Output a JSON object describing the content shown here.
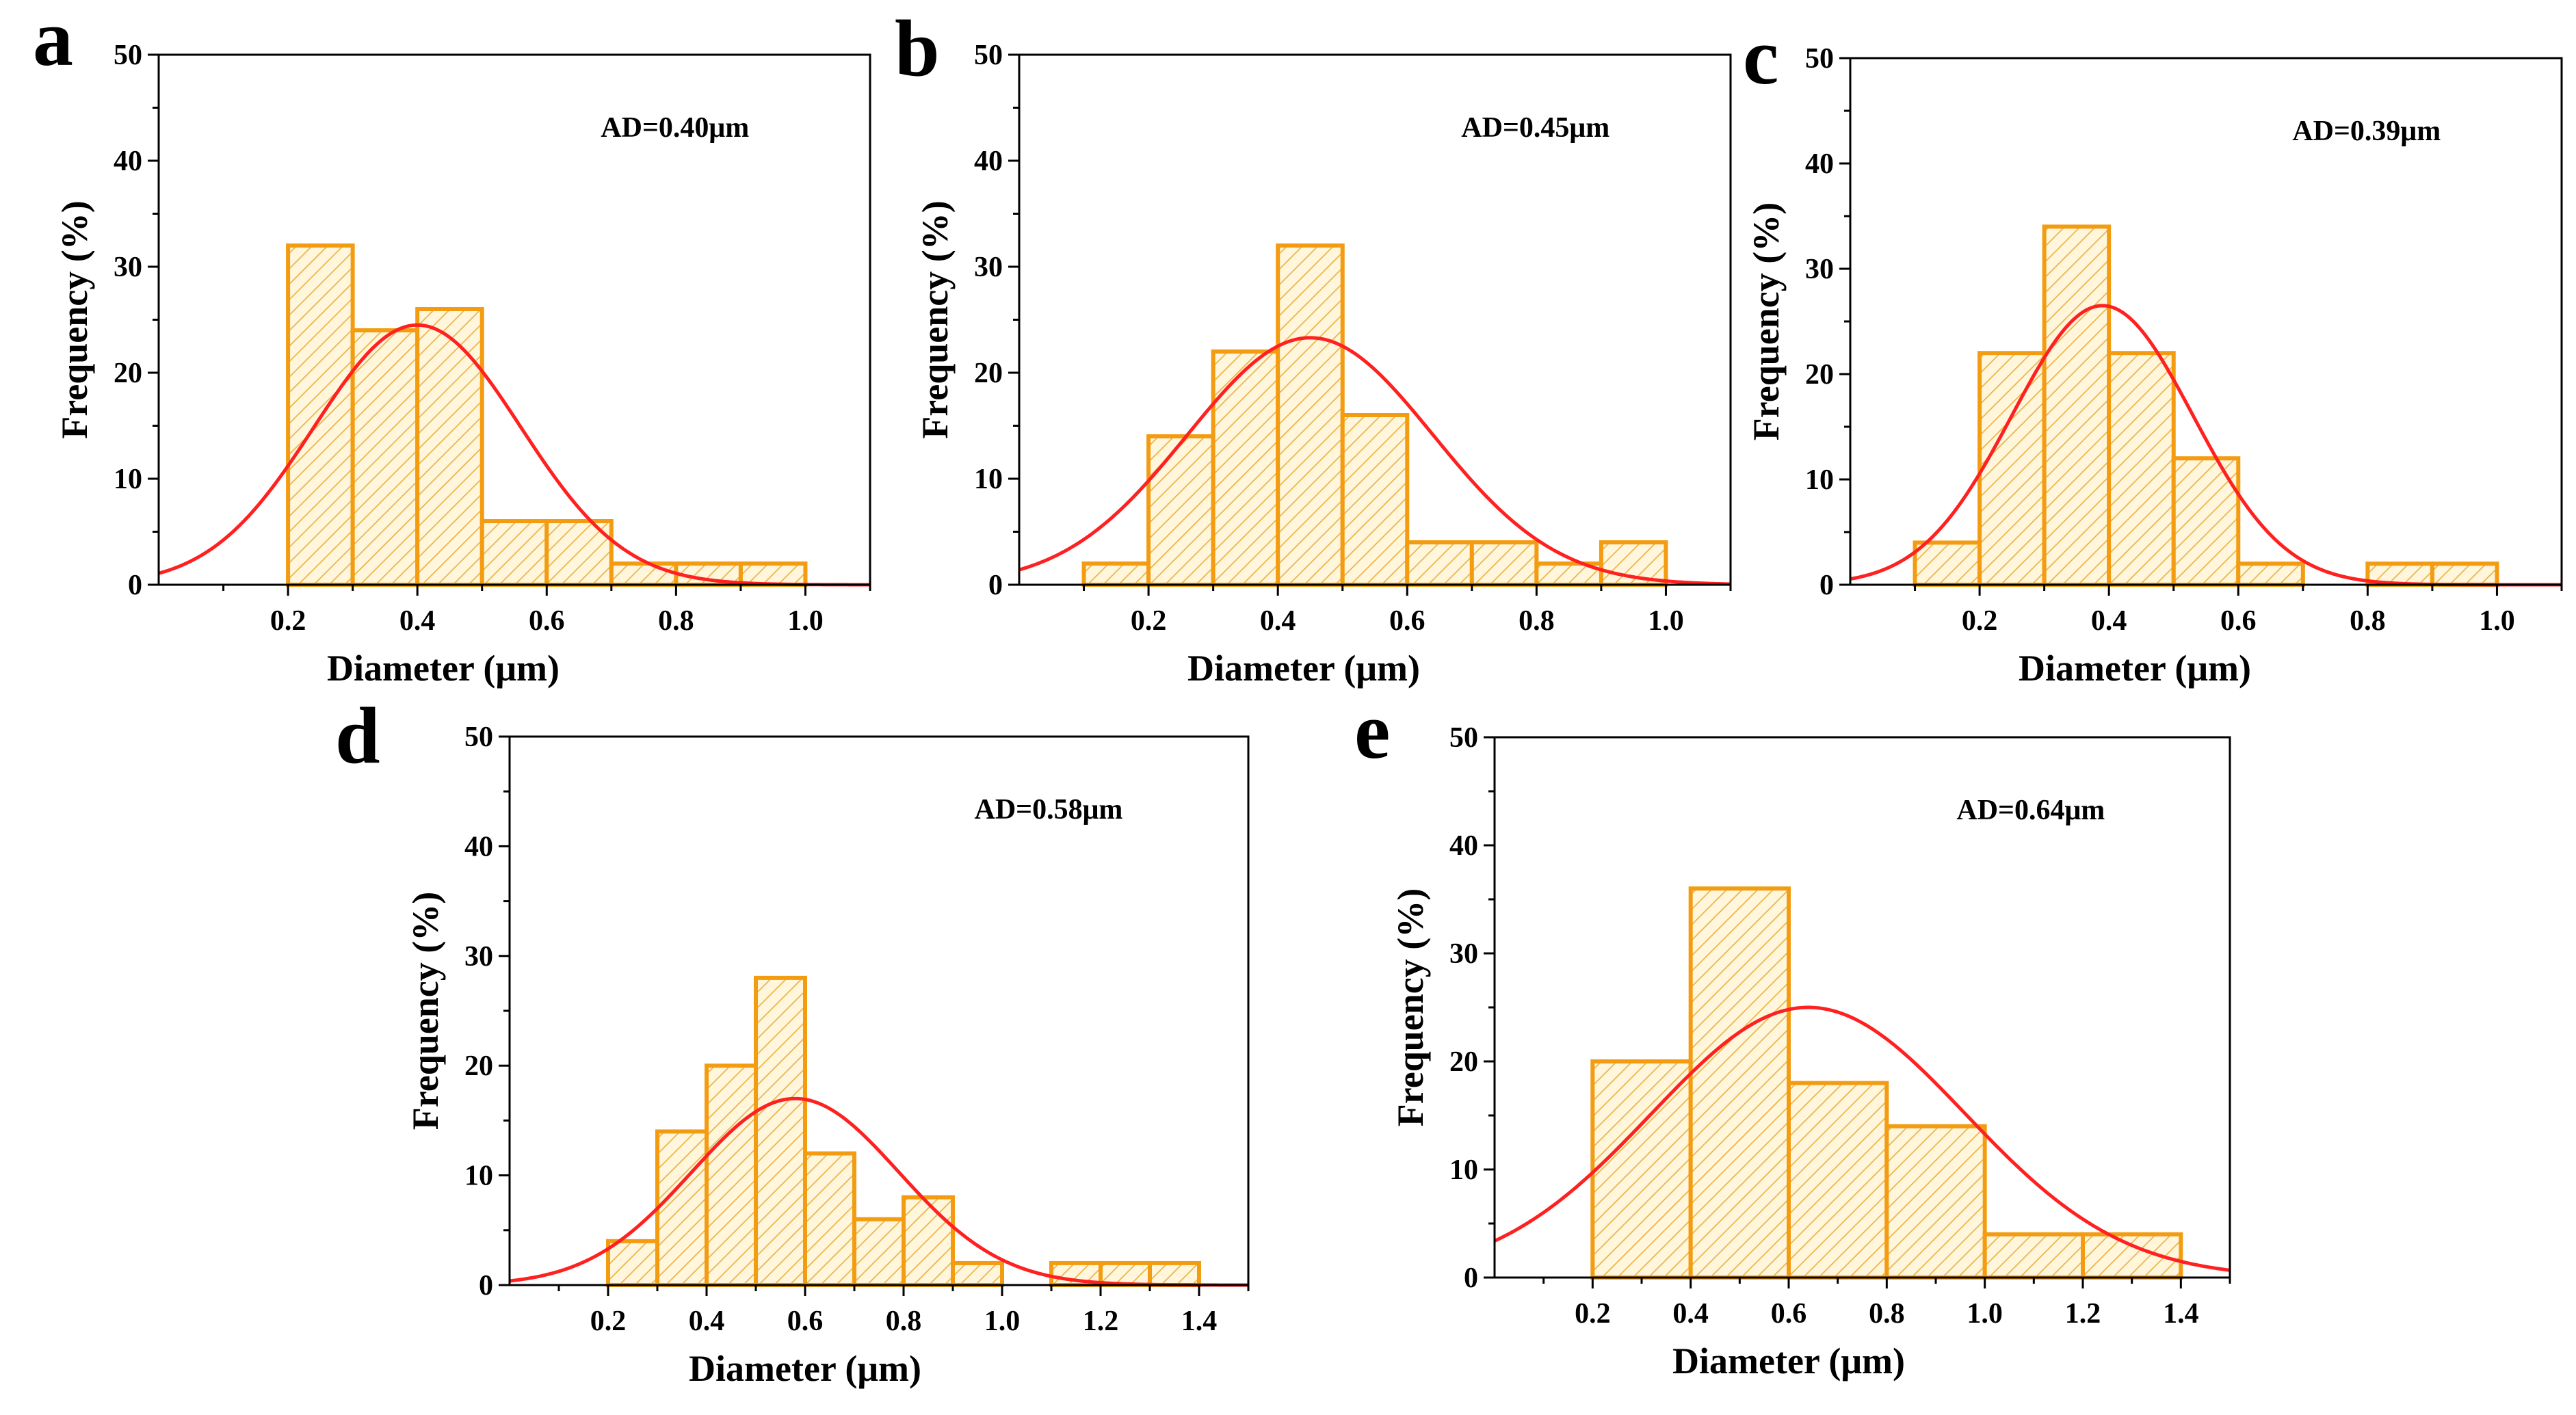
{
  "figure": {
    "panel_count": 5
  },
  "chart_data": [
    {
      "panel": "a",
      "type": "bar",
      "bin_width": 0.1,
      "bin_starts": [
        0.2,
        0.3,
        0.4,
        0.5,
        0.6,
        0.7,
        0.8,
        0.9
      ],
      "values": [
        32,
        24,
        26,
        6,
        6,
        2,
        2,
        2
      ],
      "fit": {
        "type": "gaussian",
        "mean": 0.4,
        "sigma": 0.16,
        "peak": 24.5
      },
      "annotation": "AD=0.40μm",
      "xlabel": "Diameter (μm)",
      "ylabel": "Frequency (%)",
      "xlim": [
        0,
        1.1
      ],
      "ylim": [
        0,
        50
      ],
      "xticks": [
        0.2,
        0.4,
        0.6,
        0.8,
        1.0
      ],
      "xtick_labels": [
        "0.2",
        "0.4",
        "0.6",
        "0.8",
        "1.0"
      ],
      "yticks": [
        0,
        10,
        20,
        30,
        40,
        50
      ],
      "ytick_labels": [
        "0",
        "10",
        "20",
        "30",
        "40",
        "50"
      ],
      "bar_color": "#F39C12",
      "fit_color": "#FF2020",
      "grid": false
    },
    {
      "panel": "b",
      "type": "bar",
      "bin_width": 0.1,
      "bin_starts": [
        0.1,
        0.2,
        0.3,
        0.4,
        0.5,
        0.6,
        0.7,
        0.8,
        0.9
      ],
      "values": [
        2,
        14,
        22,
        32,
        16,
        4,
        4,
        2,
        4
      ],
      "fit": {
        "type": "gaussian",
        "mean": 0.45,
        "sigma": 0.19,
        "peak": 23.3
      },
      "annotation": "AD=0.45μm",
      "xlabel": "Diameter (μm)",
      "ylabel": "Frequency (%)",
      "xlim": [
        0,
        1.1
      ],
      "ylim": [
        0,
        50
      ],
      "xticks": [
        0.2,
        0.4,
        0.6,
        0.8,
        1.0
      ],
      "xtick_labels": [
        "0.2",
        "0.4",
        "0.6",
        "0.8",
        "1.0"
      ],
      "yticks": [
        0,
        10,
        20,
        30,
        40,
        50
      ],
      "ytick_labels": [
        "0",
        "10",
        "20",
        "30",
        "40",
        "50"
      ],
      "bar_color": "#F39C12",
      "fit_color": "#FF2020",
      "grid": false
    },
    {
      "panel": "c",
      "type": "bar",
      "bin_width": 0.1,
      "bin_starts": [
        0.1,
        0.2,
        0.3,
        0.4,
        0.5,
        0.6,
        0.8,
        0.9
      ],
      "values": [
        4,
        22,
        34,
        22,
        12,
        2,
        2,
        2
      ],
      "fit": {
        "type": "gaussian",
        "mean": 0.39,
        "sigma": 0.14,
        "peak": 26.5
      },
      "annotation": "AD=0.39μm",
      "xlabel": "Diameter (μm)",
      "ylabel": "Frequency (%)",
      "xlim": [
        0,
        1.1
      ],
      "ylim": [
        0,
        50
      ],
      "xticks": [
        0.2,
        0.4,
        0.6,
        0.8,
        1.0
      ],
      "xtick_labels": [
        "0.2",
        "0.4",
        "0.6",
        "0.8",
        "1.0"
      ],
      "yticks": [
        0,
        10,
        20,
        30,
        40,
        50
      ],
      "ytick_labels": [
        "0",
        "10",
        "20",
        "30",
        "40",
        "50"
      ],
      "bar_color": "#F39C12",
      "fit_color": "#FF2020",
      "grid": false
    },
    {
      "panel": "d",
      "type": "bar",
      "bin_width": 0.1,
      "bin_starts": [
        0.2,
        0.3,
        0.4,
        0.5,
        0.6,
        0.7,
        0.8,
        0.9,
        1.1,
        1.2,
        1.3
      ],
      "values": [
        4,
        14,
        20,
        28,
        12,
        6,
        8,
        2,
        2,
        2,
        2
      ],
      "fit": {
        "type": "gaussian",
        "mean": 0.58,
        "sigma": 0.21,
        "peak": 17.0
      },
      "annotation": "AD=0.58μm",
      "xlabel": "Diameter (μm)",
      "ylabel": "Frequency (%)",
      "xlim": [
        0,
        1.5
      ],
      "ylim": [
        0,
        50
      ],
      "xticks": [
        0.2,
        0.4,
        0.6,
        0.8,
        1.0,
        1.2,
        1.4
      ],
      "xtick_labels": [
        "0.2",
        "0.4",
        "0.6",
        "0.8",
        "1.0",
        "1.2",
        "1.4"
      ],
      "yticks": [
        0,
        10,
        20,
        30,
        40,
        50
      ],
      "ytick_labels": [
        "0",
        "10",
        "20",
        "30",
        "40",
        "50"
      ],
      "bar_color": "#F39C12",
      "fit_color": "#FF2020",
      "grid": false
    },
    {
      "panel": "e",
      "type": "bar",
      "bin_width": 0.2,
      "bin_starts": [
        0.2,
        0.4,
        0.6,
        0.8,
        1.0,
        1.2
      ],
      "values": [
        20,
        36,
        18,
        14,
        4,
        4
      ],
      "fit": {
        "type": "gaussian",
        "mean": 0.64,
        "sigma": 0.32,
        "peak": 25.0
      },
      "annotation": "AD=0.64μm",
      "xlabel": "Diameter (μm)",
      "ylabel": "Frequency (%)",
      "xlim": [
        0,
        1.5
      ],
      "ylim": [
        0,
        50
      ],
      "xticks": [
        0.2,
        0.4,
        0.6,
        0.8,
        1.0,
        1.2,
        1.4
      ],
      "xtick_labels": [
        "0.2",
        "0.4",
        "0.6",
        "0.8",
        "1.0",
        "1.2",
        "1.4"
      ],
      "yticks": [
        0,
        10,
        20,
        30,
        40,
        50
      ],
      "ytick_labels": [
        "0",
        "10",
        "20",
        "30",
        "40",
        "50"
      ],
      "bar_color": "#F39C12",
      "fit_color": "#FF2020",
      "grid": false
    }
  ]
}
